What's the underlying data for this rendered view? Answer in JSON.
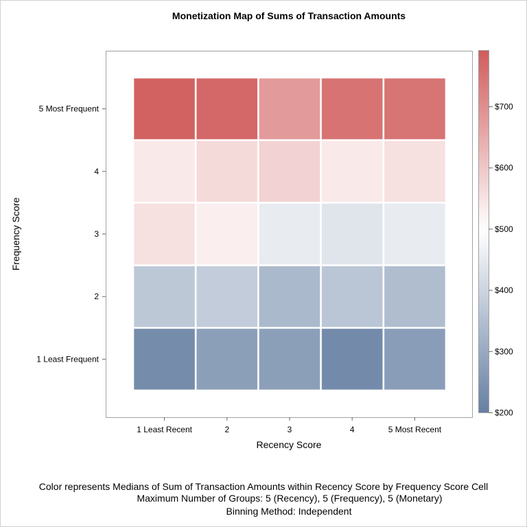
{
  "chart_data": {
    "type": "heatmap",
    "title": "Monetization Map of Sums of Transaction Amounts",
    "xlabel": "Recency Score",
    "ylabel": "Frequency Score",
    "x_categories": [
      "1 Least Recent",
      "2",
      "3",
      "4",
      "5 Most Recent"
    ],
    "y_categories": [
      "1 Least Frequent",
      "2",
      "3",
      "4",
      "5 Most Frequent"
    ],
    "values": [
      [
        230,
        275,
        275,
        225,
        270
      ],
      [
        370,
        380,
        335,
        365,
        345
      ],
      [
        555,
        530,
        455,
        440,
        455
      ],
      [
        540,
        565,
        580,
        540,
        555
      ],
      [
        780,
        770,
        680,
        750,
        748
      ]
    ],
    "colorbar": {
      "range": [
        200,
        792
      ],
      "ticks": [
        200,
        300,
        400,
        500,
        600,
        700
      ],
      "tick_labels": [
        "$200",
        "$300",
        "$400",
        "$500",
        "$600",
        "$700"
      ],
      "colors": {
        "low": "#667fa2",
        "mid": "#ffffff",
        "high": "#d05b5b"
      },
      "mid_value": 500
    },
    "footnotes": [
      "Color represents Medians of Sum of Transaction Amounts within Recency Score by Frequency Score Cell",
      "Maximum Number of Groups: 5 (Recency), 5 (Frequency), 5 (Monetary)",
      "Binning Method: Independent"
    ]
  }
}
